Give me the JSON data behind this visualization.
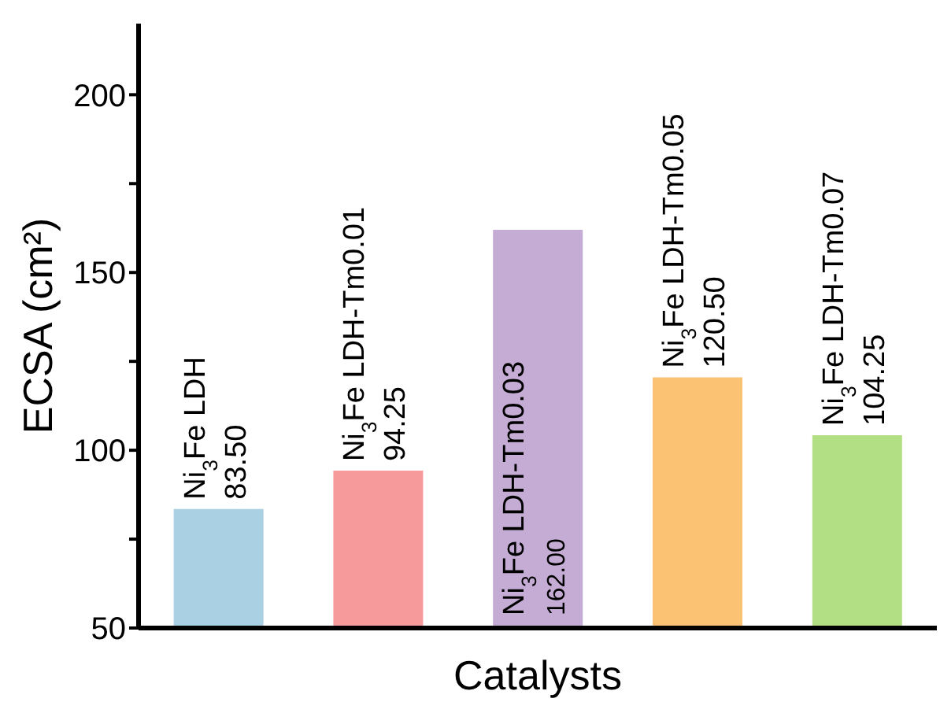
{
  "chart_data": {
    "type": "bar",
    "xlabel": "Catalysts",
    "ylabel": "ECSA (cm²)",
    "categories": [
      "Ni$_{3}$Fe LDH",
      "Ni$_{3}$Fe LDH-Tm0.01",
      "Ni$_{3}$Fe LDH-Tm0.03",
      "Ni$_{3}$Fe LDH-Tm0.05",
      "Ni$_{3}$Fe LDH-Tm0.07"
    ],
    "values": [
      83.5,
      94.25,
      162,
      120.5,
      104.25
    ],
    "value_labels": [
      "83.50",
      "94.25",
      "162.00",
      "120.50",
      "104.25"
    ],
    "colors": [
      "#a9d0e3",
      "#f79a9c",
      "#c5acd5",
      "#fbc274",
      "#b3df84"
    ],
    "ylim": [
      50,
      220
    ],
    "yticks": [
      50,
      {
        "value": 75,
        "label": null
      },
      100,
      {
        "value": 125,
        "label": null
      },
      150,
      {
        "value": 175,
        "label": null
      },
      200
    ],
    "grid": false,
    "legend": false
  }
}
